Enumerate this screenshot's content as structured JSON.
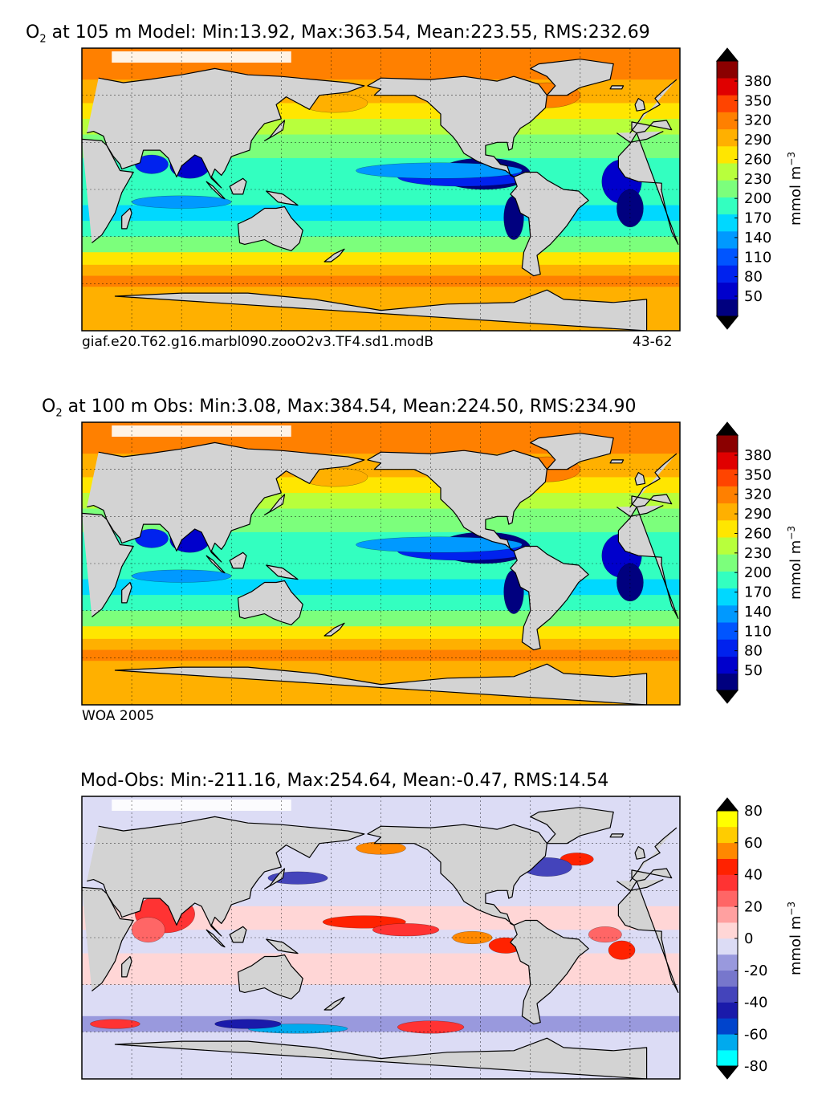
{
  "chart_data": [
    {
      "type": "heatmap",
      "title_var": "O",
      "title_sub": "2",
      "title_rest": " at 105 m Model: Min:13.92, Max:363.54, Mean:223.55, RMS:232.69",
      "footer_left": "giaf.e20.T62.g16.marbl090.zooO2v3.TF4.sd1.modB",
      "footer_right": "43-62",
      "colorbar_ticks": [
        "380",
        "350",
        "320",
        "290",
        "260",
        "230",
        "200",
        "170",
        "140",
        "110",
        "80",
        "50"
      ],
      "colorbar_label": "mmol m",
      "colorbar_label_sup": "−3",
      "colors": [
        "#00007f",
        "#0000cc",
        "#0022ee",
        "#0055ff",
        "#0099ff",
        "#00d8ff",
        "#33ffc0",
        "#7cff7c",
        "#b8ff3c",
        "#ffe600",
        "#ffb000",
        "#ff8000",
        "#ff4400",
        "#e00000",
        "#8b0000"
      ],
      "land_color": "#d3d3d3",
      "missing_color": "#ffffff"
    },
    {
      "type": "heatmap",
      "title_var": "O",
      "title_sub": "2",
      "title_rest": " at 100 m Obs: Min:3.08, Max:384.54, Mean:224.50, RMS:234.90",
      "footer_left": "WOA 2005",
      "footer_right": "",
      "colorbar_ticks": [
        "380",
        "350",
        "320",
        "290",
        "260",
        "230",
        "200",
        "170",
        "140",
        "110",
        "80",
        "50"
      ],
      "colorbar_label": "mmol m",
      "colorbar_label_sup": "−3",
      "colors": [
        "#00007f",
        "#0000cc",
        "#0022ee",
        "#0055ff",
        "#0099ff",
        "#00d8ff",
        "#33ffc0",
        "#7cff7c",
        "#b8ff3c",
        "#ffe600",
        "#ffb000",
        "#ff8000",
        "#ff4400",
        "#e00000",
        "#8b0000"
      ],
      "land_color": "#d3d3d3",
      "missing_color": "#ffffff"
    },
    {
      "type": "heatmap",
      "title_var": "",
      "title_sub": "",
      "title_rest": "Mod-Obs: Min:-211.16, Max:254.64, Mean:-0.47, RMS:14.54",
      "footer_left": "",
      "footer_right": "",
      "colorbar_ticks": [
        "80",
        "60",
        "40",
        "20",
        "0",
        "-20",
        "-40",
        "-60",
        "-80"
      ],
      "colorbar_label": "mmol m",
      "colorbar_label_sup": "−3",
      "colors": [
        "#00ffff",
        "#00aaee",
        "#0044cc",
        "#1a1aaa",
        "#4444bb",
        "#7777cc",
        "#9999dd",
        "#dcdcf5",
        "#ffd6d6",
        "#ffa0a0",
        "#ff6666",
        "#ff3333",
        "#ff2200",
        "#ff8800",
        "#ffcc00",
        "#ffff00"
      ],
      "land_color": "#d3d3d3",
      "missing_color": "#ffffff"
    }
  ]
}
